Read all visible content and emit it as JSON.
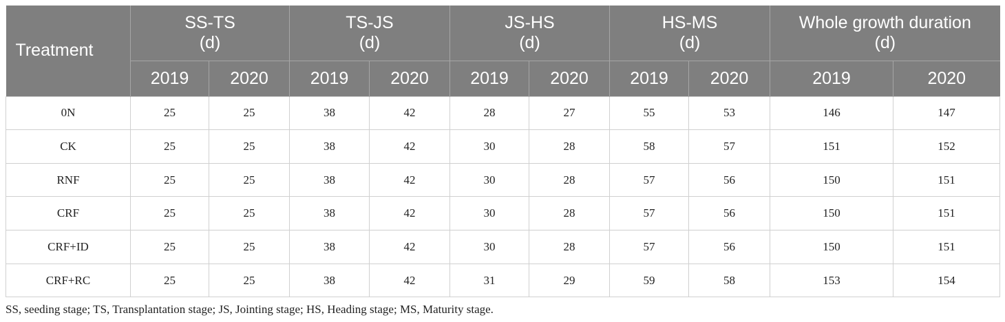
{
  "header": {
    "treatment": "Treatment",
    "groups": [
      {
        "name": "SS-TS",
        "unit": "(d)"
      },
      {
        "name": "TS-JS",
        "unit": "(d)"
      },
      {
        "name": "JS-HS",
        "unit": "(d)"
      },
      {
        "name": "HS-MS",
        "unit": "(d)"
      },
      {
        "name": "Whole growth duration",
        "unit": "(d)"
      }
    ],
    "years": [
      "2019",
      "2020"
    ]
  },
  "rows": [
    {
      "treatment": "0N",
      "values": [
        "25",
        "25",
        "38",
        "42",
        "28",
        "27",
        "55",
        "53",
        "146",
        "147"
      ]
    },
    {
      "treatment": "CK",
      "values": [
        "25",
        "25",
        "38",
        "42",
        "30",
        "28",
        "58",
        "57",
        "151",
        "152"
      ]
    },
    {
      "treatment": "RNF",
      "values": [
        "25",
        "25",
        "38",
        "42",
        "30",
        "28",
        "57",
        "56",
        "150",
        "151"
      ]
    },
    {
      "treatment": "CRF",
      "values": [
        "25",
        "25",
        "38",
        "42",
        "30",
        "28",
        "57",
        "56",
        "150",
        "151"
      ]
    },
    {
      "treatment": "CRF+ID",
      "values": [
        "25",
        "25",
        "38",
        "42",
        "30",
        "28",
        "57",
        "56",
        "150",
        "151"
      ]
    },
    {
      "treatment": "CRF+RC",
      "values": [
        "25",
        "25",
        "38",
        "42",
        "31",
        "29",
        "59",
        "58",
        "153",
        "154"
      ]
    }
  ],
  "footnote": "SS, seeding stage; TS, Transplantation stage; JS, Jointing stage; HS, Heading stage; MS, Maturity stage."
}
